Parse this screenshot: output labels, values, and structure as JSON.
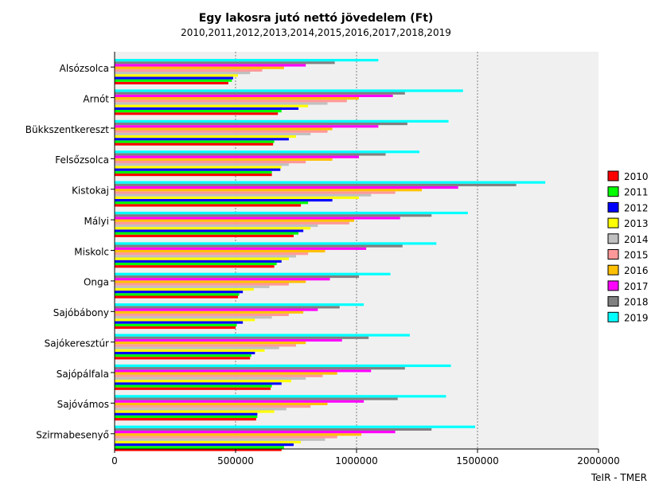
{
  "chart_data": {
    "type": "bar",
    "orientation": "horizontal",
    "title": "Egy lakosra jutó nettó jövedelem (Ft)",
    "subtitle": "2010,2011,2012,2013,2014,2015,2016,2017,2018,2019",
    "source": "TeIR - TMER",
    "xlim": [
      0,
      2000000
    ],
    "xticks": [
      0,
      500000,
      1000000,
      1500000,
      2000000
    ],
    "xtick_labels": [
      "0",
      "500000",
      "1000000",
      "1500000",
      "2000000"
    ],
    "grid": "vertical dotted",
    "legend_position": "right",
    "categories": [
      "Alsózsolca",
      "Arnót",
      "Bükkszentkereszt",
      "Felsőzsolca",
      "Kistokaj",
      "Mályi",
      "Miskolc",
      "Onga",
      "Sajóbábony",
      "Sajókeresztúr",
      "Sajópálfala",
      "Sajóvámos",
      "Szirmabesenyő"
    ],
    "series": [
      {
        "name": "2010",
        "color": "#ff0000",
        "values": [
          470000,
          675000,
          655000,
          650000,
          770000,
          740000,
          660000,
          510000,
          500000,
          560000,
          645000,
          585000,
          690000
        ]
      },
      {
        "name": "2011",
        "color": "#00ff00",
        "values": [
          485000,
          690000,
          660000,
          650000,
          800000,
          760000,
          670000,
          515000,
          505000,
          565000,
          650000,
          590000,
          700000
        ]
      },
      {
        "name": "2012",
        "color": "#0000ff",
        "values": [
          490000,
          760000,
          720000,
          685000,
          900000,
          780000,
          690000,
          530000,
          530000,
          580000,
          690000,
          590000,
          740000
        ]
      },
      {
        "name": "2013",
        "color": "#ffff00",
        "values": [
          510000,
          800000,
          750000,
          690000,
          1010000,
          810000,
          720000,
          575000,
          580000,
          620000,
          730000,
          660000,
          770000
        ]
      },
      {
        "name": "2014",
        "color": "#c0c0c0",
        "values": [
          560000,
          880000,
          810000,
          720000,
          1060000,
          840000,
          750000,
          640000,
          650000,
          680000,
          790000,
          710000,
          870000
        ]
      },
      {
        "name": "2015",
        "color": "#ff9999",
        "values": [
          610000,
          960000,
          880000,
          790000,
          1160000,
          970000,
          800000,
          720000,
          720000,
          750000,
          860000,
          810000,
          920000
        ]
      },
      {
        "name": "2016",
        "color": "#ffc000",
        "values": [
          700000,
          1010000,
          900000,
          900000,
          1270000,
          990000,
          870000,
          790000,
          780000,
          790000,
          920000,
          880000,
          1020000
        ]
      },
      {
        "name": "2017",
        "color": "#ff00ff",
        "values": [
          790000,
          1150000,
          1090000,
          1010000,
          1420000,
          1180000,
          1040000,
          890000,
          840000,
          940000,
          1060000,
          1030000,
          1160000
        ]
      },
      {
        "name": "2018",
        "color": "#808080",
        "values": [
          910000,
          1200000,
          1210000,
          1120000,
          1660000,
          1310000,
          1190000,
          1010000,
          930000,
          1050000,
          1200000,
          1170000,
          1310000
        ]
      },
      {
        "name": "2019",
        "color": "#00ffff",
        "values": [
          1090000,
          1440000,
          1380000,
          1260000,
          1780000,
          1460000,
          1330000,
          1140000,
          1030000,
          1220000,
          1390000,
          1370000,
          1490000
        ]
      }
    ]
  }
}
